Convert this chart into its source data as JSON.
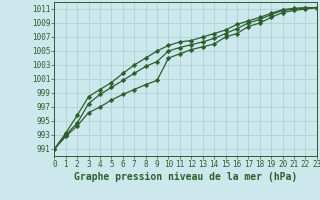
{
  "title": "Graphe pression niveau de la mer (hPa)",
  "background_color": "#cce8ec",
  "grid_color": "#aacccc",
  "line_color": "#2d5e2d",
  "xlim": [
    0,
    23
  ],
  "ylim": [
    990,
    1012
  ],
  "yticks": [
    991,
    993,
    995,
    997,
    999,
    1001,
    1003,
    1005,
    1007,
    1009,
    1011
  ],
  "xticks": [
    0,
    1,
    2,
    3,
    4,
    5,
    6,
    7,
    8,
    9,
    10,
    11,
    12,
    13,
    14,
    15,
    16,
    17,
    18,
    19,
    20,
    21,
    22,
    23
  ],
  "series": [
    [
      991.0,
      992.8,
      994.3,
      996.2,
      997.0,
      998.0,
      998.8,
      999.5,
      1000.2,
      1000.8,
      1004.0,
      1004.6,
      1005.2,
      1005.6,
      1006.0,
      1007.0,
      1007.5,
      1008.5,
      1009.0,
      1009.8,
      1010.5,
      1010.8,
      1011.0,
      1011.2
    ],
    [
      991.0,
      993.0,
      994.7,
      997.5,
      998.8,
      999.8,
      1000.8,
      1001.8,
      1002.8,
      1003.5,
      1005.0,
      1005.5,
      1005.9,
      1006.3,
      1006.8,
      1007.5,
      1008.2,
      1009.0,
      1009.5,
      1010.2,
      1010.8,
      1011.0,
      1011.1,
      1011.2
    ],
    [
      991.0,
      993.3,
      995.8,
      998.5,
      999.5,
      1000.5,
      1001.8,
      1003.0,
      1004.0,
      1005.0,
      1005.8,
      1006.3,
      1006.5,
      1007.0,
      1007.5,
      1008.0,
      1008.8,
      1009.3,
      1009.8,
      1010.4,
      1010.9,
      1011.1,
      1011.2,
      1011.2
    ]
  ],
  "marker": "D",
  "marker_size": 2.2,
  "line_width": 0.9,
  "title_fontsize": 7,
  "tick_fontsize": 5.5
}
